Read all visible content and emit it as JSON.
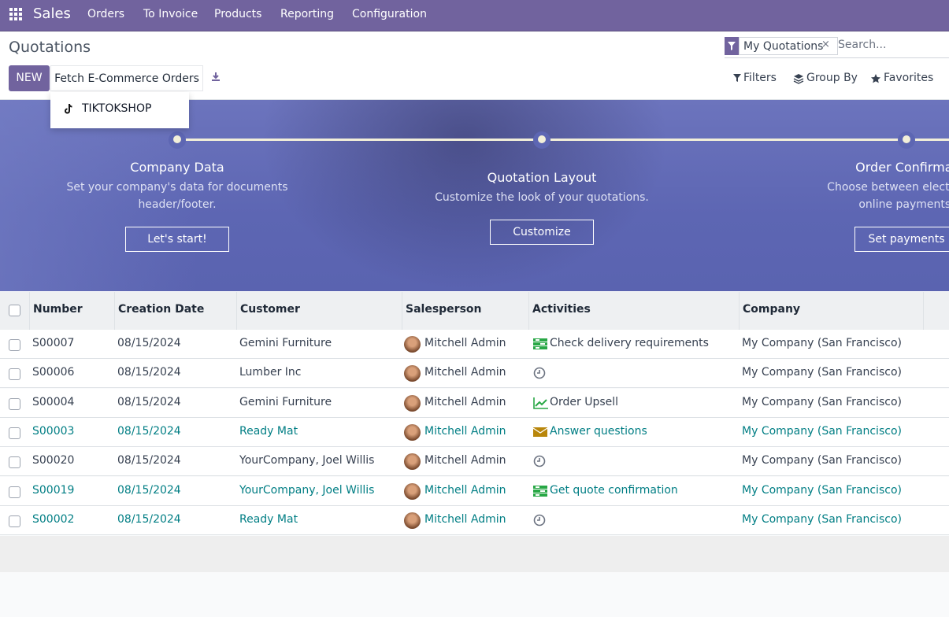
{
  "navbar": {
    "app": "Sales",
    "menu": [
      "Orders",
      "To Invoice",
      "Products",
      "Reporting",
      "Configuration"
    ]
  },
  "control_panel": {
    "title": "Quotations",
    "new_button": "NEW",
    "fetch_button": "Fetch E-Commerce Orders",
    "dropdown_item": "TIKTOKSHOP",
    "facet": "My Quotations",
    "search_placeholder": "Search...",
    "filters": "Filters",
    "group_by": "Group By",
    "favorites": "Favorites"
  },
  "onboarding": {
    "steps": [
      {
        "title": "Company Data",
        "description": [
          "Set your company's data for documents",
          "header/footer."
        ],
        "button": "Let's start!"
      },
      {
        "title": "Quotation Layout",
        "description": [
          "Customize the look of your quotations."
        ],
        "button": "Customize"
      },
      {
        "title": "Order Confirmat",
        "description": [
          "Choose between electronic s",
          "online payments."
        ],
        "button": "Set payments"
      }
    ]
  },
  "table": {
    "columns": [
      "Number",
      "Creation Date",
      "Customer",
      "Salesperson",
      "Activities",
      "Company"
    ],
    "rows": [
      {
        "number": "S00007",
        "date": "08/15/2024",
        "customer": "Gemini Furniture",
        "salesperson": "Mitchell Admin",
        "activity_icon": "tasks",
        "activity": "Check delivery requirements",
        "company": "My Company (San Francisco)",
        "color": "#374151"
      },
      {
        "number": "S00006",
        "date": "08/15/2024",
        "customer": "Lumber Inc",
        "salesperson": "Mitchell Admin",
        "activity_icon": "clock",
        "company": "My Company (San Francisco)",
        "color": "#374151"
      },
      {
        "number": "S00004",
        "date": "08/15/2024",
        "customer": "Gemini Furniture",
        "salesperson": "Mitchell Admin",
        "activity_icon": "chart",
        "activity": "Order Upsell",
        "company": "My Company (San Francisco)",
        "color": "#374151"
      },
      {
        "number": "S00003",
        "date": "08/15/2024",
        "customer": "Ready Mat",
        "salesperson": "Mitchell Admin",
        "activity_icon": "envelope",
        "activity": "Answer questions",
        "company": "My Company (San Francisco)",
        "color": "#017e84"
      },
      {
        "number": "S00020",
        "date": "08/15/2024",
        "customer": "YourCompany, Joel Willis",
        "salesperson": "Mitchell Admin",
        "activity_icon": "clock",
        "company": "My Company (San Francisco)",
        "color": "#374151"
      },
      {
        "number": "S00019",
        "date": "08/15/2024",
        "customer": "YourCompany, Joel Willis",
        "salesperson": "Mitchell Admin",
        "activity_icon": "tasks",
        "activity": "Get quote confirmation",
        "company": "My Company (San Francisco)",
        "color": "#017e84"
      },
      {
        "number": "S00002",
        "date": "08/15/2024",
        "customer": "Ready Mat",
        "salesperson": "Mitchell Admin",
        "activity_icon": "clock",
        "company": "My Company (San Francisco)",
        "color": "#017e84"
      }
    ]
  }
}
